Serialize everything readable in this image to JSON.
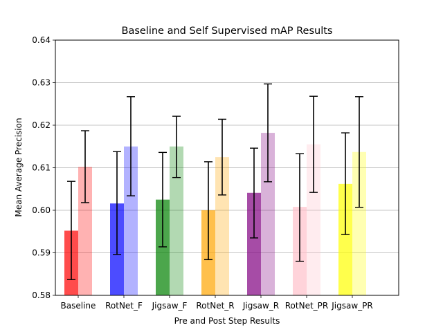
{
  "chart_data": {
    "type": "bar",
    "title": "Baseline and Self Supervised mAP Results",
    "xlabel": "Pre and Post Step Results",
    "ylabel": "Mean Average Precision",
    "ylim": [
      0.58,
      0.64
    ],
    "yticks": [
      "0.58",
      "0.59",
      "0.60",
      "0.61",
      "0.62",
      "0.63",
      "0.64"
    ],
    "grid": "horizontal",
    "legend": "none",
    "categories": [
      "Baseline",
      "RotNet_F",
      "Jigsaw_F",
      "RotNet_R",
      "Jigsaw_R",
      "RotNet_PR",
      "Jigsaw_PR"
    ],
    "colors": [
      "#ff0000",
      "#0000ff",
      "#008000",
      "#ffa500",
      "#800080",
      "#ffc0cb",
      "#ffff00"
    ],
    "series": [
      {
        "values": [
          0.5952,
          0.6016,
          0.6025,
          0.6,
          0.6041,
          0.6008,
          0.6062
        ],
        "error_low": [
          0.5837,
          0.5896,
          0.5914,
          0.5884,
          0.5935,
          0.588,
          0.5943
        ],
        "error_high": [
          0.6068,
          0.6138,
          0.6136,
          0.6114,
          0.6146,
          0.6133,
          0.6182
        ],
        "opacity": 0.7
      },
      {
        "values": [
          0.6102,
          0.615,
          0.615,
          0.6125,
          0.6182,
          0.6155,
          0.6137
        ],
        "error_low": [
          0.6018,
          0.6034,
          0.6077,
          0.6036,
          0.6067,
          0.6042,
          0.6007
        ],
        "error_high": [
          0.6187,
          0.6267,
          0.6221,
          0.6214,
          0.6297,
          0.6268,
          0.6267
        ],
        "opacity": 0.3
      }
    ]
  }
}
